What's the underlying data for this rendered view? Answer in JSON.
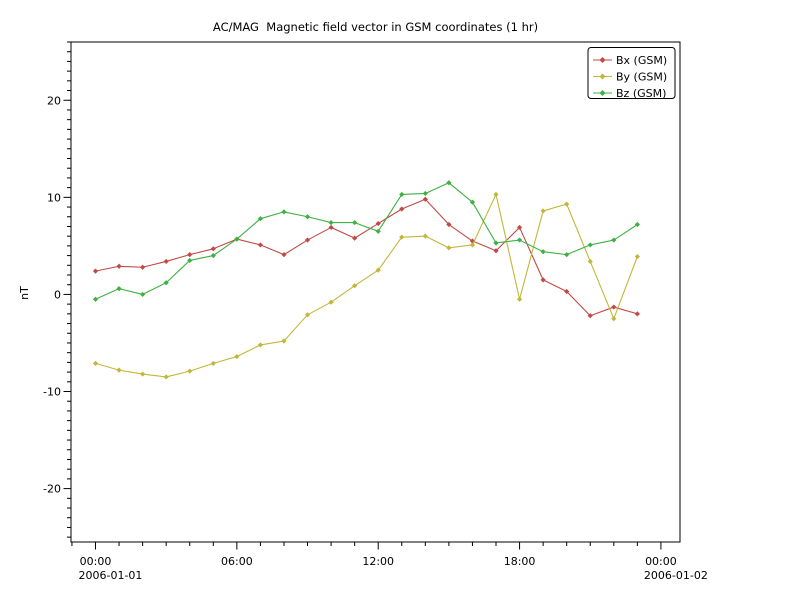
{
  "title": "AC/MAG  Magnetic field vector in GSM coordinates (1 hr)",
  "ylabel": "nT",
  "legend": {
    "position": "top-right",
    "items": [
      {
        "label": "Bx (GSM)",
        "color": "#c24a45"
      },
      {
        "label": "By (GSM)",
        "color": "#c2b73a"
      },
      {
        "label": "Bz (GSM)",
        "color": "#3fb044"
      }
    ]
  },
  "axes": {
    "y_major_ticks": [
      {
        "value": 20,
        "label": "20"
      },
      {
        "value": 10,
        "label": "10"
      },
      {
        "value": 0,
        "label": "0"
      },
      {
        "value": -10,
        "label": "-10"
      },
      {
        "value": -20,
        "label": "-20"
      }
    ],
    "x_major_ticks": [
      {
        "hour": 0,
        "label": "00:00",
        "date": "2006-01-01"
      },
      {
        "hour": 6,
        "label": "06:00",
        "date": ""
      },
      {
        "hour": 12,
        "label": "12:00",
        "date": ""
      },
      {
        "hour": 18,
        "label": "18:00",
        "date": ""
      },
      {
        "hour": 24,
        "label": "00:00",
        "date": "2006-01-02"
      }
    ]
  },
  "chart_data": {
    "type": "line",
    "title": "AC/MAG  Magnetic field vector in GSM coordinates (1 hr)",
    "xlabel": "",
    "ylabel": "nT",
    "x_start_date": "2006-01-01",
    "x_hours": [
      0,
      1,
      2,
      3,
      4,
      5,
      6,
      7,
      8,
      9,
      10,
      11,
      12,
      13,
      14,
      15,
      16,
      17,
      18,
      19,
      20,
      21,
      22,
      23
    ],
    "series": [
      {
        "name": "Bx (GSM)",
        "color": "#c24a45",
        "values": [
          2.4,
          2.9,
          2.8,
          3.4,
          4.1,
          4.7,
          5.7,
          5.1,
          4.1,
          5.6,
          6.9,
          5.8,
          7.3,
          8.8,
          9.8,
          7.2,
          5.5,
          4.5,
          6.9,
          1.5,
          0.3,
          -2.2,
          -1.3,
          -2.0
        ]
      },
      {
        "name": "By (GSM)",
        "color": "#c2b73a",
        "values": [
          -7.1,
          -7.8,
          -8.2,
          -8.5,
          -7.9,
          -7.1,
          -6.4,
          -5.2,
          -4.8,
          -2.1,
          -0.8,
          0.9,
          2.5,
          5.9,
          6.0,
          4.8,
          5.1,
          10.3,
          -0.5,
          8.6,
          9.3,
          3.4,
          -2.5,
          3.9
        ]
      },
      {
        "name": "Bz (GSM)",
        "color": "#3fb044",
        "values": [
          -0.5,
          0.6,
          0.0,
          1.2,
          3.5,
          4.0,
          5.7,
          7.8,
          8.5,
          8.0,
          7.4,
          7.4,
          6.5,
          10.3,
          10.4,
          11.5,
          9.5,
          5.3,
          5.6,
          4.4,
          4.1,
          5.1,
          5.6,
          7.2
        ]
      }
    ],
    "ylim": [
      -25.5,
      26.0
    ],
    "xlim_hours": [
      -1.04,
      24.81
    ],
    "y_minor_step": 1,
    "x_minor_step_hours": 1,
    "grid": false,
    "marker": "diamond",
    "legend_position": "top-right"
  }
}
